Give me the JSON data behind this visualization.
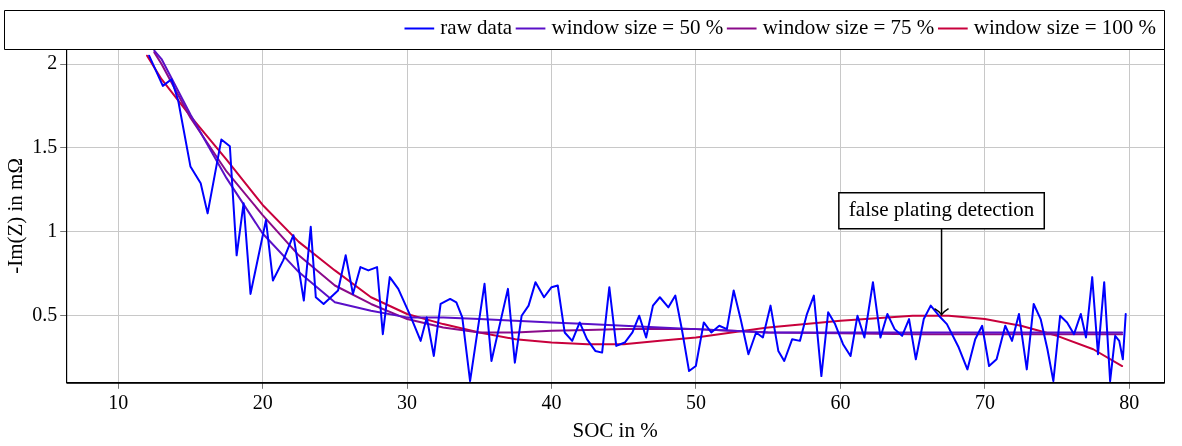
{
  "chart_data": {
    "type": "line",
    "xlabel": "SOC in %",
    "ylabel": "-Im(Z) in mΩ",
    "xlim": [
      6.4,
      82.4
    ],
    "ylim": [
      0.1,
      2.09
    ],
    "xticks": [
      10,
      20,
      30,
      40,
      50,
      60,
      70,
      80
    ],
    "yticks": [
      0.5,
      1,
      1.5,
      2
    ],
    "grid": true,
    "legend": "top",
    "marker": "none",
    "line_style": "solid",
    "annotations": [
      {
        "text": "false plating detection",
        "x": 67,
        "y": 0.5
      }
    ],
    "series": [
      {
        "name": "raw data",
        "color": "#0000ff",
        "x": [
          12.14,
          13.09,
          13.69,
          14.16,
          15.0,
          15.71,
          16.19,
          17.14,
          17.73,
          18.2,
          18.68,
          19.16,
          20.23,
          20.71,
          21.42,
          22.13,
          22.85,
          23.33,
          23.68,
          24.22,
          25.22,
          25.75,
          26.25,
          26.77,
          27.32,
          27.92,
          28.32,
          28.8,
          29.39,
          30.22,
          30.94,
          31.36,
          31.85,
          32.32,
          32.98,
          33.41,
          33.82,
          34.36,
          35.36,
          35.84,
          36.98,
          37.46,
          37.93,
          38.41,
          38.89,
          39.48,
          40.0,
          40.43,
          40.91,
          41.43,
          41.95,
          42.45,
          43.03,
          43.5,
          44.0,
          44.48,
          45.07,
          45.6,
          46.07,
          46.55,
          47.02,
          47.5,
          48.09,
          48.57,
          49.04,
          49.52,
          49.99,
          50.54,
          51.06,
          51.61,
          52.14,
          52.61,
          53.09,
          53.63,
          54.16,
          54.63,
          55.16,
          55.7,
          56.11,
          56.66,
          57.2,
          57.68,
          58.16,
          58.68,
          59.15,
          59.63,
          60.18,
          60.7,
          61.18,
          61.66,
          62.25,
          62.77,
          63.25,
          63.75,
          64.27,
          64.75,
          65.22,
          65.77,
          66.25,
          66.82,
          67.37,
          68.19,
          68.79,
          69.33,
          69.81,
          70.29,
          70.81,
          71.41,
          71.88,
          72.36,
          72.9,
          73.38,
          73.86,
          74.33,
          74.74,
          75.21,
          75.69,
          76.17,
          76.64,
          77.0,
          77.43,
          77.83,
          78.26,
          78.67,
          79.02,
          79.3,
          79.55,
          79.75
        ],
        "values": [
          2.05,
          1.87,
          1.91,
          1.78,
          1.39,
          1.29,
          1.11,
          1.55,
          1.51,
          0.86,
          1.17,
          0.63,
          1.07,
          0.71,
          0.83,
          0.98,
          0.59,
          1.03,
          0.61,
          0.57,
          0.65,
          0.86,
          0.63,
          0.79,
          0.77,
          0.79,
          0.39,
          0.73,
          0.66,
          0.5,
          0.35,
          0.49,
          0.26,
          0.57,
          0.6,
          0.58,
          0.49,
          0.11,
          0.69,
          0.23,
          0.66,
          0.22,
          0.5,
          0.56,
          0.7,
          0.61,
          0.67,
          0.68,
          0.4,
          0.35,
          0.46,
          0.36,
          0.29,
          0.28,
          0.67,
          0.32,
          0.34,
          0.4,
          0.5,
          0.37,
          0.56,
          0.61,
          0.55,
          0.62,
          0.41,
          0.17,
          0.2,
          0.46,
          0.4,
          0.44,
          0.42,
          0.65,
          0.48,
          0.27,
          0.4,
          0.37,
          0.56,
          0.29,
          0.23,
          0.36,
          0.35,
          0.51,
          0.62,
          0.14,
          0.52,
          0.45,
          0.33,
          0.26,
          0.5,
          0.37,
          0.7,
          0.37,
          0.51,
          0.42,
          0.38,
          0.48,
          0.24,
          0.48,
          0.56,
          0.5,
          0.45,
          0.31,
          0.18,
          0.36,
          0.44,
          0.2,
          0.24,
          0.44,
          0.35,
          0.51,
          0.18,
          0.57,
          0.48,
          0.3,
          0.11,
          0.5,
          0.46,
          0.39,
          0.51,
          0.37,
          0.73,
          0.27,
          0.7,
          0.11,
          0.38,
          0.35,
          0.24,
          0.51
        ]
      },
      {
        "name": "window size = 50 %",
        "color": "#5a10c8",
        "x": [
          12.5,
          13,
          15,
          17.5,
          20,
          22.5,
          25,
          27.5,
          30,
          32.5,
          35,
          37.5,
          40,
          42.5,
          45,
          47.5,
          50,
          52.5,
          55,
          60,
          65,
          70,
          75,
          79.5
        ],
        "values": [
          2.08,
          2.03,
          1.7,
          1.32,
          0.99,
          0.76,
          0.58,
          0.53,
          0.49,
          0.49,
          0.48,
          0.47,
          0.46,
          0.45,
          0.44,
          0.43,
          0.42,
          0.41,
          0.4,
          0.4,
          0.4,
          0.4,
          0.4,
          0.4
        ]
      },
      {
        "name": "window size = 75 %",
        "color": "#8a0a8a",
        "x": [
          12.5,
          13,
          15,
          17.5,
          20,
          22.5,
          25,
          27.5,
          30,
          32.5,
          35,
          37.5,
          40,
          42.5,
          45,
          47.5,
          50,
          52.5,
          55,
          60,
          65,
          70,
          75,
          79.5
        ],
        "values": [
          2.07,
          2.0,
          1.68,
          1.36,
          1.1,
          0.86,
          0.68,
          0.57,
          0.48,
          0.43,
          0.4,
          0.4,
          0.41,
          0.415,
          0.42,
          0.42,
          0.42,
          0.41,
          0.4,
          0.395,
          0.39,
          0.39,
          0.39,
          0.39
        ]
      },
      {
        "name": "window size = 100 %",
        "color": "#c8003c",
        "x": [
          12,
          13,
          15,
          17.5,
          20,
          22.5,
          25,
          27.5,
          30,
          32.5,
          35,
          37.5,
          40,
          42.5,
          45,
          47.5,
          50,
          55,
          60,
          65,
          67.5,
          70,
          72.5,
          75,
          77.5,
          79.5
        ],
        "values": [
          2.05,
          1.91,
          1.69,
          1.43,
          1.16,
          0.94,
          0.77,
          0.61,
          0.51,
          0.45,
          0.4,
          0.36,
          0.34,
          0.33,
          0.33,
          0.35,
          0.37,
          0.43,
          0.47,
          0.5,
          0.5,
          0.48,
          0.44,
          0.38,
          0.3,
          0.2
        ]
      }
    ]
  }
}
